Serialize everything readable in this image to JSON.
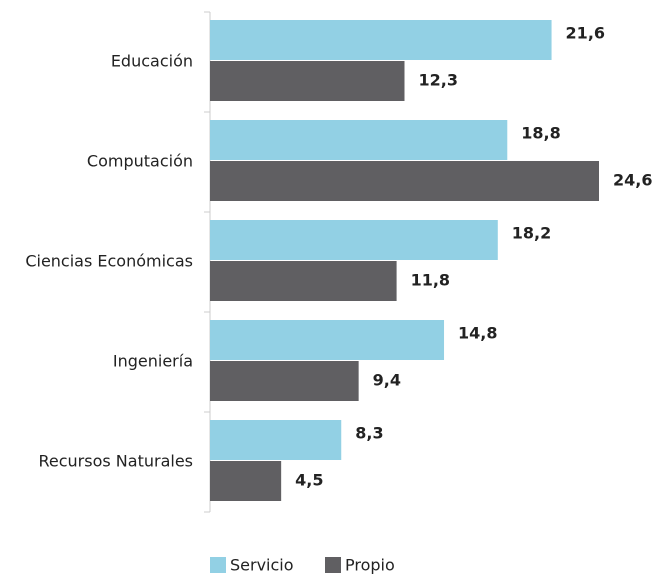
{
  "chart_data": {
    "type": "bar",
    "orientation": "horizontal",
    "categories": [
      "Educación",
      "Computación",
      "Ciencias Económicas",
      "Ingeniería",
      "Recursos Naturales"
    ],
    "series": [
      {
        "name": "Servicio",
        "color": "#92d0e4",
        "values": [
          21.6,
          18.8,
          18.2,
          14.8,
          8.3
        ],
        "value_labels": [
          "21,6",
          "18,8",
          "18,2",
          "14,8",
          "8,3"
        ]
      },
      {
        "name": "Propio",
        "color": "#605f62",
        "values": [
          12.3,
          24.6,
          11.8,
          9.4,
          4.5
        ],
        "value_labels": [
          "12,3",
          "24,6",
          "11,8",
          "9,4",
          "4,5"
        ]
      }
    ],
    "legend": "bottom"
  }
}
